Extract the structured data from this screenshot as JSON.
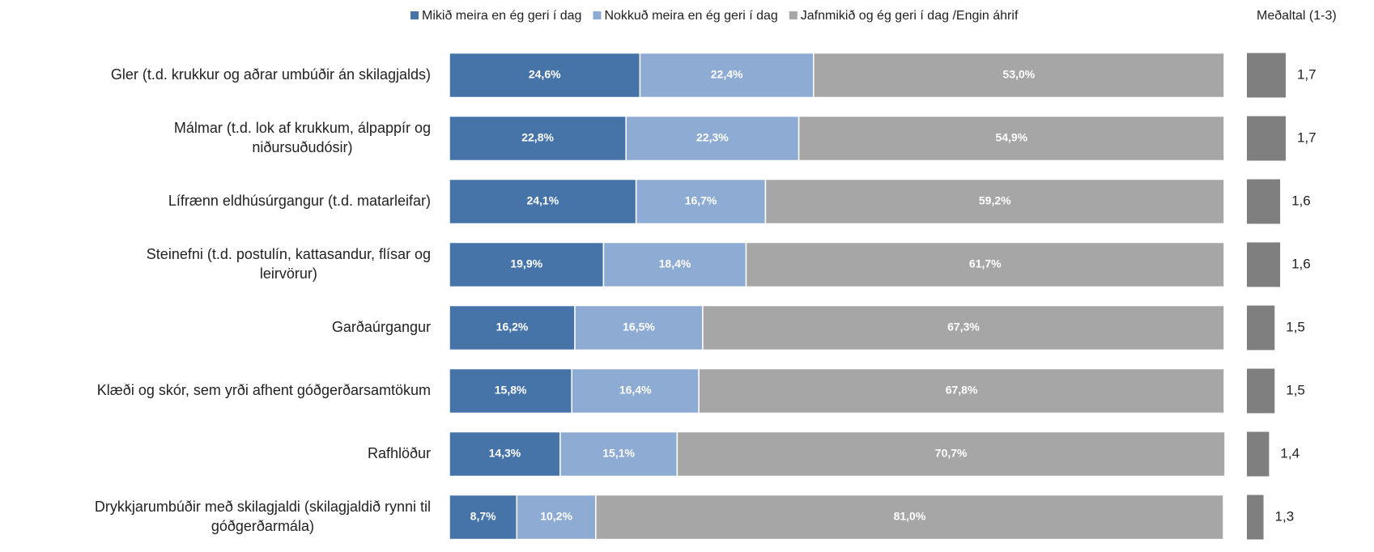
{
  "chart_data": {
    "type": "stacked-bar-100",
    "categories": [
      "Gler (t.d. krukkur og aðrar umbúðir án skilagjalds)",
      "Málmar (t.d. lok af krukkum, álpappír og\nniðursuðudósir)",
      "Lífrænn eldhúsúrgangur (t.d. matarleifar)",
      "Steinefni (t.d. postulín, kattasandur, flísar og\nleirvörur)",
      "Garðaúrgangur",
      "Klæði og skór, sem yrði afhent góðgerðarsamtökum",
      "Rafhlöður",
      "Drykkjarumbúðir með skilagjaldi (skilagjaldið rynni til\ngóðgerðarmála)"
    ],
    "series": [
      {
        "name": "Mikið meira en ég geri í dag",
        "color": "#4674a8",
        "values": [
          24.6,
          22.8,
          24.1,
          19.9,
          16.2,
          15.8,
          14.3,
          8.7
        ],
        "value_labels": [
          "24,6%",
          "22,8%",
          "24,1%",
          "19,9%",
          "16,2%",
          "15,8%",
          "14,3%",
          "8,7%"
        ]
      },
      {
        "name": "Nokkuð meira en ég geri í dag",
        "color": "#8eacd3",
        "values": [
          22.4,
          22.3,
          16.7,
          18.4,
          16.5,
          16.4,
          15.1,
          10.2
        ],
        "value_labels": [
          "22,4%",
          "22,3%",
          "16,7%",
          "18,4%",
          "16,5%",
          "16,4%",
          "15,1%",
          "10,2%"
        ]
      },
      {
        "name": "Jafnmikið og ég geri í dag /Engin áhrif",
        "color": "#a6a6a6",
        "values": [
          53.0,
          54.9,
          59.2,
          61.7,
          67.3,
          67.8,
          70.7,
          81.0
        ],
        "value_labels": [
          "53,0%",
          "54,9%",
          "59,2%",
          "61,7%",
          "67,3%",
          "67,8%",
          "70,7%",
          "81,0%"
        ]
      }
    ],
    "xlim": [
      0,
      100
    ],
    "mean": {
      "name": "Meðaltal (1-3)",
      "color": "#7f7f7f",
      "values": [
        1.7,
        1.7,
        1.6,
        1.6,
        1.5,
        1.5,
        1.4,
        1.3
      ],
      "value_labels": [
        "1,7",
        "1,7",
        "1,6",
        "1,6",
        "1,5",
        "1,5",
        "1,4",
        "1,3"
      ],
      "xlim": [
        1,
        3
      ]
    }
  }
}
